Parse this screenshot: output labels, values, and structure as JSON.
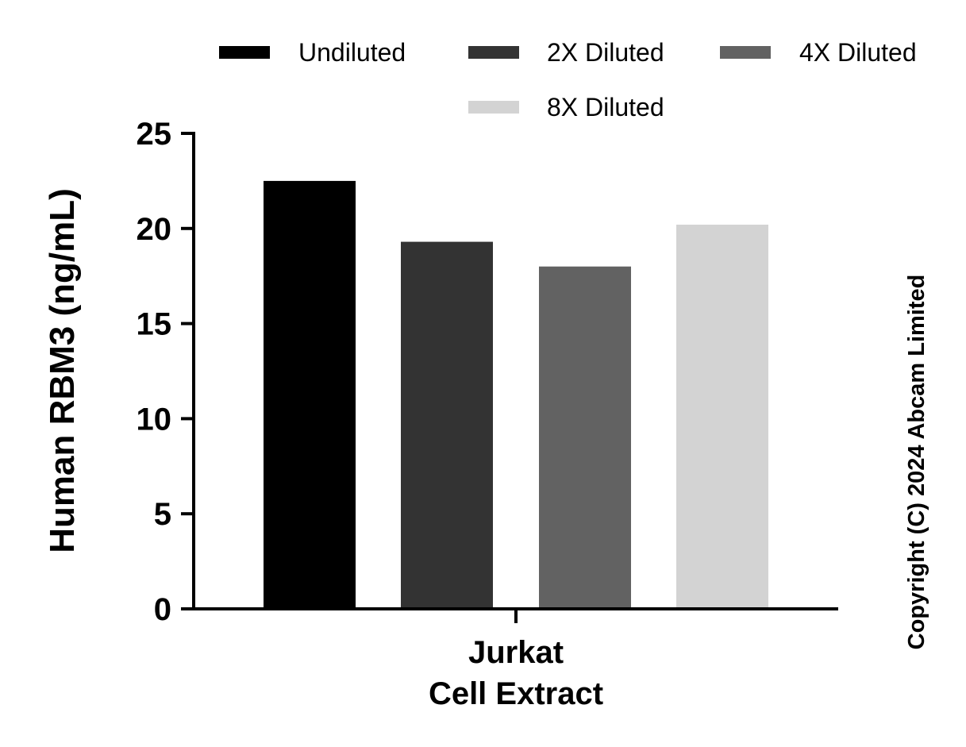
{
  "chart_data": {
    "type": "bar",
    "categories": [
      "Jurkat\nCell Extract"
    ],
    "category_lines": [
      "Jurkat",
      "Cell Extract"
    ],
    "series": [
      {
        "name": "Undiluted",
        "values": [
          22.5
        ],
        "color": "#000000"
      },
      {
        "name": "2X Diluted",
        "values": [
          19.3
        ],
        "color": "#333333"
      },
      {
        "name": "4X Diluted",
        "values": [
          18.0
        ],
        "color": "#626262"
      },
      {
        "name": "8X Diluted",
        "values": [
          20.2
        ],
        "color": "#d3d3d3"
      }
    ],
    "title": "",
    "xlabel": "",
    "ylabel": "Human RBM3 (ng/mL)",
    "ylim": [
      0,
      25
    ],
    "yticks": [
      0,
      5,
      10,
      15,
      20,
      25
    ],
    "grid": false,
    "legend_position": "top"
  },
  "copyright": "Copyright (C) 2024 Abcam Limited"
}
